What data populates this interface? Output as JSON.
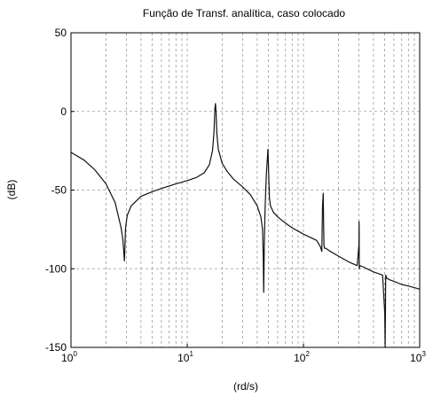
{
  "chart_data": {
    "type": "line",
    "title": "Função de Transf. analítica, caso colocado",
    "xlabel": "(rd/s)",
    "ylabel": "(dB)",
    "xscale": "log",
    "xlim": [
      1,
      1000
    ],
    "ylim": [
      -150,
      50
    ],
    "grid": true,
    "x_ticks": [
      {
        "base": "10",
        "exp": "0"
      },
      {
        "base": "10",
        "exp": "1"
      },
      {
        "base": "10",
        "exp": "2"
      },
      {
        "base": "10",
        "exp": "3"
      }
    ],
    "y_ticks": [
      "50",
      "0",
      "-50",
      "-100",
      "-150"
    ],
    "y_tick_values": [
      50,
      0,
      -50,
      -100,
      -150
    ],
    "series": [
      {
        "x": [
          1,
          1.3,
          1.6,
          2,
          2.4,
          2.7,
          2.8,
          2.85,
          2.88,
          2.9,
          2.92,
          2.95,
          3.05,
          3.3,
          4,
          5,
          6,
          8,
          10,
          12,
          14,
          15.5,
          16.5,
          17,
          17.3,
          17.5,
          17.7,
          18,
          18.5,
          20,
          22,
          25,
          30,
          35,
          40,
          43,
          44.5,
          45,
          45.5,
          46,
          46.5,
          47,
          48,
          49.5,
          50.5,
          51,
          52,
          55,
          60,
          70,
          80,
          100,
          130,
          140,
          144,
          146,
          148,
          149,
          150,
          152,
          156,
          170,
          200,
          250,
          290,
          300,
          301,
          302,
          305,
          330,
          400,
          480,
          500,
          505,
          510,
          520,
          550,
          600,
          700,
          800,
          900,
          1000
        ],
        "y": [
          -26,
          -31,
          -37,
          -46,
          -58,
          -74,
          -82,
          -90,
          -95,
          -90,
          -82,
          -74,
          -66,
          -60,
          -54,
          -51,
          -49,
          -46,
          -44,
          -42,
          -39,
          -34,
          -25,
          -13,
          2,
          5,
          0,
          -14,
          -24,
          -33,
          -38,
          -43,
          -48,
          -53,
          -60,
          -67,
          -75,
          -90,
          -115,
          -88,
          -70,
          -58,
          -40,
          -24,
          -45,
          -55,
          -60,
          -64,
          -67,
          -71,
          -74,
          -78,
          -82,
          -86,
          -89,
          -60,
          -52,
          -70,
          -85,
          -87,
          -87,
          -89,
          -92,
          -96,
          -98,
          -85,
          -70,
          -100,
          -98,
          -99,
          -102,
          -104,
          -128,
          -150,
          -104,
          -106,
          -107,
          -108,
          -110,
          -111,
          -112,
          -113
        ]
      }
    ]
  }
}
